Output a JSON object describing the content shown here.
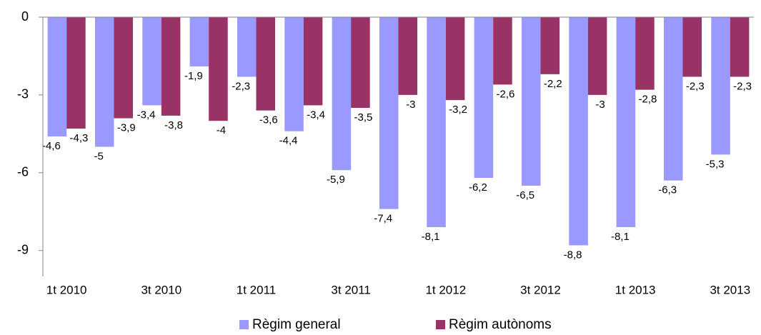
{
  "chart_data": {
    "type": "bar",
    "categories": [
      "1t 2010",
      null,
      "3t 2010",
      null,
      "1t 2011",
      null,
      "3t 2011",
      null,
      "1t 2012",
      null,
      "3t 2012",
      null,
      "1t 2013",
      null,
      "3t 2013"
    ],
    "series": [
      {
        "name": "Règim general",
        "color": "#9999ff",
        "values": [
          -4.6,
          -5,
          -3.4,
          -1.9,
          -2.3,
          -4.4,
          -5.9,
          -7.4,
          -8.1,
          -6.2,
          -6.5,
          -8.8,
          -8.1,
          -6.3,
          -5.3
        ],
        "value_labels": [
          "-4,6",
          "-5",
          "-3,4",
          "-1,9",
          "-2,3",
          "-4,4",
          "-5,9",
          "-7,4",
          "-8,1",
          "-6,2",
          "-6,5",
          "-8,8",
          "-8,1",
          "-6,3",
          "-5,3"
        ]
      },
      {
        "name": "Règim autònoms",
        "color": "#993366",
        "values": [
          -4.3,
          -3.9,
          -3.8,
          -4,
          -3.6,
          -3.4,
          -3.5,
          -3,
          -3.2,
          -2.6,
          -2.2,
          -3,
          -2.8,
          -2.3,
          -2.3
        ],
        "value_labels": [
          "-4,3",
          "-3,9",
          "-3,8",
          "-4",
          "-3,6",
          "-3,4",
          "-3,5",
          "-3",
          "-3,2",
          "-2,6",
          "-2,2",
          "-3",
          "-2,8",
          "-2,3",
          "-2,3"
        ]
      }
    ],
    "ylim": [
      -10,
      0
    ],
    "yticks": [
      0,
      -3,
      -6,
      -9
    ],
    "grid": false,
    "legend": "bottom"
  }
}
